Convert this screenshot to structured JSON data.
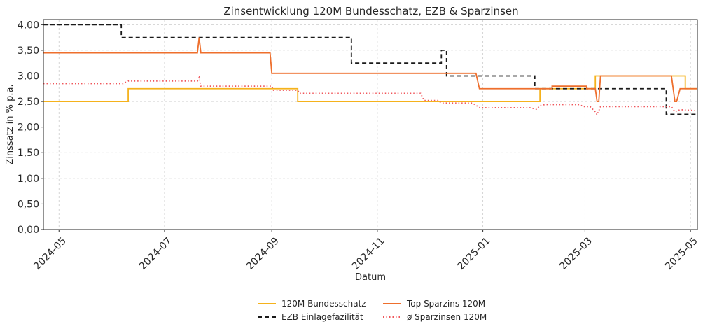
{
  "chart_data": {
    "type": "line",
    "title": "Zinsentwicklung 120M Bundesschatz, EZB & Sparzinsen",
    "xlabel": "Datum",
    "ylabel": "Zinssatz in % p.a.",
    "xlim": [
      "2024-04-22",
      "2025-05-05"
    ],
    "ylim": [
      0,
      4.1
    ],
    "grid": true,
    "legend_placement": "bottom",
    "x_ticks": [
      {
        "date": "2024-05-01",
        "label": "2024-05"
      },
      {
        "date": "2024-07-01",
        "label": "2024-07"
      },
      {
        "date": "2024-09-01",
        "label": "2024-09"
      },
      {
        "date": "2024-11-01",
        "label": "2024-11"
      },
      {
        "date": "2025-01-01",
        "label": "2025-01"
      },
      {
        "date": "2025-03-01",
        "label": "2025-03"
      },
      {
        "date": "2025-05-01",
        "label": "2025-05"
      }
    ],
    "y_ticks": [
      {
        "value": 0.0,
        "label": "0,00"
      },
      {
        "value": 0.5,
        "label": "0,50"
      },
      {
        "value": 1.0,
        "label": "1,00"
      },
      {
        "value": 1.5,
        "label": "1,50"
      },
      {
        "value": 2.0,
        "label": "2,00"
      },
      {
        "value": 2.5,
        "label": "2,50"
      },
      {
        "value": 3.0,
        "label": "3,00"
      },
      {
        "value": 3.5,
        "label": "3,50"
      },
      {
        "value": 4.0,
        "label": "4,00"
      }
    ],
    "series": [
      {
        "name": "120M Bundesschatz",
        "color": "#f5b21c",
        "style": "solid",
        "points": [
          [
            "2024-04-22",
            2.5
          ],
          [
            "2024-06-10",
            2.5
          ],
          [
            "2024-06-10",
            2.75
          ],
          [
            "2024-09-16",
            2.75
          ],
          [
            "2024-09-16",
            2.5
          ],
          [
            "2025-02-03",
            2.5
          ],
          [
            "2025-02-03",
            2.75
          ],
          [
            "2025-02-24",
            2.75
          ],
          [
            "2025-03-07",
            2.75
          ],
          [
            "2025-03-07",
            3.0
          ],
          [
            "2025-04-28",
            3.0
          ],
          [
            "2025-04-28",
            2.75
          ],
          [
            "2025-05-05",
            2.75
          ]
        ]
      },
      {
        "name": "EZB Einlagefazilität",
        "color": "#1a1a1a",
        "style": "dashed",
        "points": [
          [
            "2024-04-22",
            4.0
          ],
          [
            "2024-06-06",
            4.0
          ],
          [
            "2024-06-06",
            3.75
          ],
          [
            "2024-10-17",
            3.75
          ],
          [
            "2024-10-17",
            3.25
          ],
          [
            "2024-12-08",
            3.25
          ],
          [
            "2024-12-08",
            3.5
          ],
          [
            "2024-12-11",
            3.5
          ],
          [
            "2024-12-11",
            3.0
          ],
          [
            "2025-01-31",
            3.0
          ],
          [
            "2025-01-31",
            2.75
          ],
          [
            "2025-04-17",
            2.75
          ],
          [
            "2025-04-17",
            2.25
          ],
          [
            "2025-05-05",
            2.25
          ]
        ]
      },
      {
        "name": "Top Sparzins 120M",
        "color": "#ee6f2d",
        "style": "solid",
        "points": [
          [
            "2024-04-22",
            3.45
          ],
          [
            "2024-07-20",
            3.45
          ],
          [
            "2024-07-21",
            3.75
          ],
          [
            "2024-07-22",
            3.45
          ],
          [
            "2024-08-31",
            3.45
          ],
          [
            "2024-09-01",
            3.05
          ],
          [
            "2024-12-28",
            3.05
          ],
          [
            "2024-12-30",
            2.75
          ],
          [
            "2025-02-10",
            2.75
          ],
          [
            "2025-02-10",
            2.8
          ],
          [
            "2025-03-02",
            2.8
          ],
          [
            "2025-03-02",
            2.75
          ],
          [
            "2025-03-07",
            2.75
          ],
          [
            "2025-03-08",
            2.5
          ],
          [
            "2025-03-09",
            2.5
          ],
          [
            "2025-03-10",
            3.0
          ],
          [
            "2025-04-20",
            3.0
          ],
          [
            "2025-04-22",
            2.5
          ],
          [
            "2025-04-23",
            2.5
          ],
          [
            "2025-04-25",
            2.75
          ],
          [
            "2025-05-05",
            2.75
          ]
        ]
      },
      {
        "name": "ø Sparzinsen 120M",
        "color": "#f0555a",
        "style": "dotted",
        "points": [
          [
            "2024-04-22",
            2.85
          ],
          [
            "2024-06-07",
            2.85
          ],
          [
            "2024-06-10",
            2.9
          ],
          [
            "2024-07-20",
            2.9
          ],
          [
            "2024-07-21",
            2.97
          ],
          [
            "2024-07-22",
            2.8
          ],
          [
            "2024-09-01",
            2.8
          ],
          [
            "2024-09-02",
            2.72
          ],
          [
            "2024-09-16",
            2.72
          ],
          [
            "2024-09-17",
            2.66
          ],
          [
            "2024-11-26",
            2.66
          ],
          [
            "2024-11-28",
            2.52
          ],
          [
            "2024-12-06",
            2.52
          ],
          [
            "2024-12-08",
            2.47
          ],
          [
            "2024-12-26",
            2.47
          ],
          [
            "2024-12-30",
            2.38
          ],
          [
            "2025-01-28",
            2.38
          ],
          [
            "2025-02-01",
            2.35
          ],
          [
            "2025-02-03",
            2.42
          ],
          [
            "2025-02-06",
            2.44
          ],
          [
            "2025-02-26",
            2.44
          ],
          [
            "2025-02-28",
            2.4
          ],
          [
            "2025-03-04",
            2.4
          ],
          [
            "2025-03-07",
            2.3
          ],
          [
            "2025-03-08",
            2.24
          ],
          [
            "2025-03-10",
            2.4
          ],
          [
            "2025-04-15",
            2.4
          ],
          [
            "2025-04-20",
            2.4
          ],
          [
            "2025-04-22",
            2.3
          ],
          [
            "2025-04-25",
            2.34
          ],
          [
            "2025-05-05",
            2.32
          ]
        ]
      }
    ]
  }
}
